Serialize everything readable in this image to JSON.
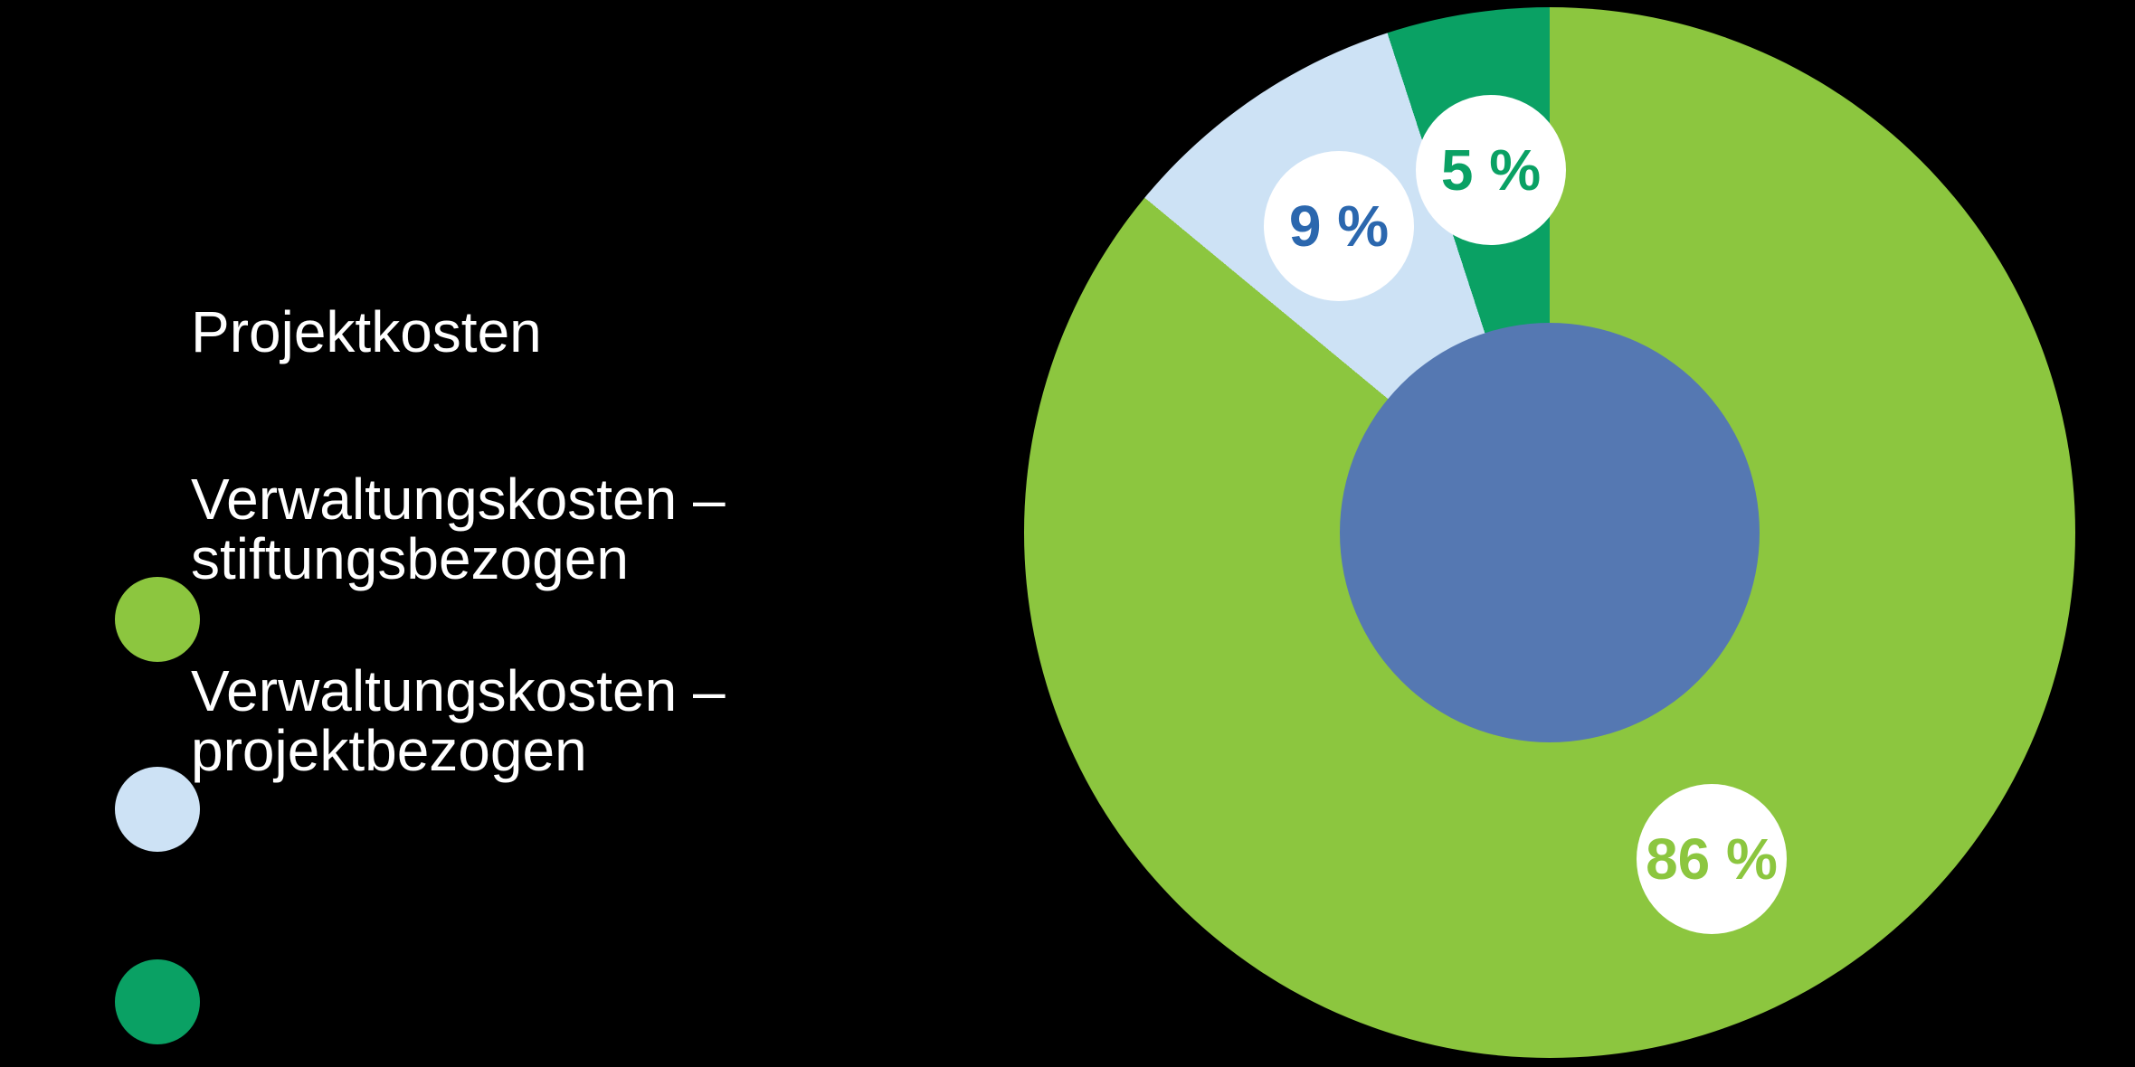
{
  "background_color": "#000000",
  "legend": {
    "text_color": "#FFFFFF",
    "items": [
      {
        "lines": [
          "Projektkosten"
        ],
        "color": "#8CC63F"
      },
      {
        "lines": [
          "Verwaltungskosten –",
          "stiftungsbezogen"
        ],
        "color": "#CDE2F5"
      },
      {
        "lines": [
          "Verwaltungskosten –",
          "projektbezogen"
        ],
        "color": "#0AA164"
      }
    ]
  },
  "chart_data": {
    "type": "pie",
    "subtype": "donut",
    "title": "",
    "categories": [
      "Projektkosten",
      "Verwaltungskosten – stiftungsbezogen",
      "Verwaltungskosten – projektbezogen"
    ],
    "values": [
      86,
      9,
      5
    ],
    "unit": "%",
    "colors": [
      "#8CC63F",
      "#CDE2F5",
      "#0AA164"
    ],
    "labels": [
      "86 %",
      "9 %",
      "5 %"
    ],
    "label_badge_color": "#FFFFFF",
    "label_text_colors": [
      "#8CC63F",
      "#2B67AE",
      "#0AA164"
    ],
    "start_angle_deg": 0,
    "direction": "clockwise",
    "hole_color": "#5578B2",
    "hole_ratio": 0.4,
    "legend_position": "left"
  }
}
